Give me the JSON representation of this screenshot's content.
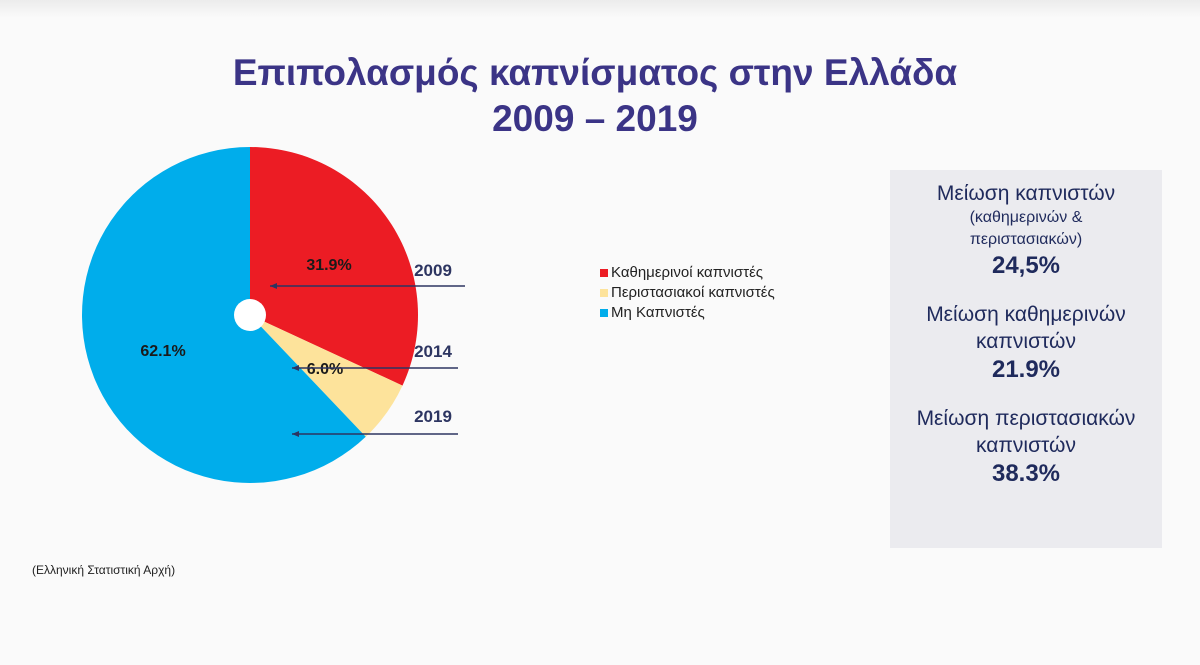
{
  "title_line1": "Επιπολασμός καπνίσματος στην Ελλάδα",
  "title_line2": "2009 – 2019",
  "chart_data": {
    "type": "pie",
    "categories": [
      "Καθημερινοί καπνιστές",
      "Περιστασιακοί καπνιστές",
      "Μη Καπνιστές"
    ],
    "values": [
      31.9,
      6.0,
      62.1
    ],
    "labels": [
      "31.9%",
      "6.0%",
      "62.1%"
    ],
    "colors": [
      "#ec1c24",
      "#fde39b",
      "#00adeb"
    ],
    "legend_position": "right",
    "annotations": [
      "2009",
      "2014",
      "2019"
    ]
  },
  "legend": [
    "Καθημερινοί καπνιστές",
    "Περιστασιακοί καπνιστές",
    "Μη Καπνιστές"
  ],
  "panel": {
    "b1_head": "Μείωση καπνιστών",
    "b1_sub1": "(καθημερινών &",
    "b1_sub2": "περιστασιακών)",
    "b1_value": "24,5%",
    "b2_head1": "Μείωση καθημερινών",
    "b2_head2": "καπνιστών",
    "b2_value": "21.9%",
    "b3_head1": "Μείωση περιστασιακών",
    "b3_head2": "καπνιστών",
    "b3_value": "38.3%"
  },
  "source": "(Ελληνική Στατιστική Αρχή)"
}
